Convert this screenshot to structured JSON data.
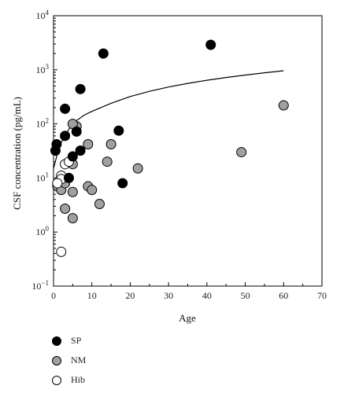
{
  "chart_data": {
    "type": "scatter",
    "xlabel": "Age",
    "ylabel": "CSF concentration  (pg/mL)",
    "xlim": [
      0,
      70
    ],
    "ylim": [
      0.1,
      10000
    ],
    "yscale": "log",
    "grid": false,
    "legend_position": "bottom-left",
    "x_ticks": [
      "0",
      "10",
      "20",
      "30",
      "40",
      "50",
      "60",
      "70"
    ],
    "series": [
      {
        "name": "SP",
        "color": "#000000",
        "points": [
          [
            0.8,
            42
          ],
          [
            0.5,
            32
          ],
          [
            3,
            190
          ],
          [
            3,
            60
          ],
          [
            4,
            10
          ],
          [
            5,
            25
          ],
          [
            6,
            72
          ],
          [
            7,
            440
          ],
          [
            7,
            32
          ],
          [
            13,
            2000
          ],
          [
            17,
            75
          ],
          [
            18,
            8
          ],
          [
            41,
            2900
          ]
        ]
      },
      {
        "name": "NM",
        "color": "#a0a0a0",
        "points": [
          [
            1,
            7
          ],
          [
            2,
            6
          ],
          [
            2,
            9
          ],
          [
            3,
            2.7
          ],
          [
            3,
            8
          ],
          [
            5,
            18
          ],
          [
            5,
            5.5
          ],
          [
            5,
            1.8
          ],
          [
            6,
            90
          ],
          [
            5,
            100
          ],
          [
            9,
            42
          ],
          [
            9,
            7
          ],
          [
            10,
            6
          ],
          [
            12,
            3.3
          ],
          [
            14,
            20
          ],
          [
            15,
            42
          ],
          [
            22,
            15
          ],
          [
            49,
            30
          ],
          [
            60,
            220
          ]
        ]
      },
      {
        "name": "Hib",
        "color": "#ffffff",
        "points": [
          [
            2,
            0.43
          ],
          [
            2,
            11
          ],
          [
            2,
            9.5
          ],
          [
            3,
            18
          ],
          [
            4,
            20
          ],
          [
            1,
            8
          ]
        ]
      }
    ],
    "curve": {
      "x": [
        0,
        1,
        2,
        4,
        6,
        8,
        10,
        15,
        20,
        25,
        30,
        35,
        40,
        45,
        50,
        55,
        60
      ],
      "y": [
        15,
        28,
        45,
        80,
        115,
        145,
        170,
        240,
        320,
        400,
        480,
        560,
        640,
        720,
        800,
        880,
        960
      ]
    }
  }
}
